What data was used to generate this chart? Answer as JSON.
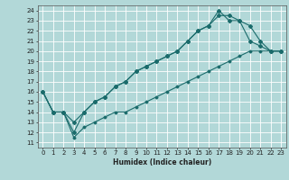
{
  "xlabel": "Humidex (Indice chaleur)",
  "bg_color": "#b2d8d8",
  "grid_color": "#ffffff",
  "line_color": "#1a6b6b",
  "xlim": [
    -0.5,
    23.5
  ],
  "ylim": [
    10.5,
    24.5
  ],
  "xticks": [
    0,
    1,
    2,
    3,
    4,
    5,
    6,
    7,
    8,
    9,
    10,
    11,
    12,
    13,
    14,
    15,
    16,
    17,
    18,
    19,
    20,
    21,
    22,
    23
  ],
  "yticks": [
    11,
    12,
    13,
    14,
    15,
    16,
    17,
    18,
    19,
    20,
    21,
    22,
    23,
    24
  ],
  "line1_x": [
    0,
    1,
    2,
    3,
    4,
    5,
    6,
    7,
    8,
    9,
    10,
    11,
    12,
    13,
    14,
    15,
    16,
    17,
    18,
    19,
    20,
    21,
    22,
    23
  ],
  "line1_y": [
    16,
    14,
    14,
    13,
    14,
    15,
    15.5,
    16.5,
    17,
    18,
    18.5,
    19,
    19.5,
    20,
    21,
    22,
    22.5,
    24,
    23,
    23,
    21,
    20.5,
    20,
    20
  ],
  "line2_x": [
    0,
    1,
    2,
    3,
    4,
    5,
    6,
    7,
    8,
    9,
    10,
    11,
    12,
    13,
    14,
    15,
    16,
    17,
    18,
    19,
    20,
    21,
    22,
    23
  ],
  "line2_y": [
    16,
    14,
    14,
    12,
    14,
    15,
    15.5,
    16.5,
    17,
    18,
    18.5,
    19,
    19.5,
    20,
    21,
    22,
    22.5,
    23.5,
    23.5,
    23,
    22.5,
    21,
    20,
    20
  ],
  "line3_x": [
    0,
    1,
    2,
    3,
    4,
    5,
    6,
    7,
    8,
    9,
    10,
    11,
    12,
    13,
    14,
    15,
    16,
    17,
    18,
    19,
    20,
    21,
    22,
    23
  ],
  "line3_y": [
    16,
    14,
    14,
    11.5,
    12.5,
    13,
    13.5,
    14,
    14,
    14.5,
    15,
    15.5,
    16,
    16.5,
    17,
    17.5,
    18,
    18.5,
    19,
    19.5,
    20,
    20,
    20,
    20
  ]
}
